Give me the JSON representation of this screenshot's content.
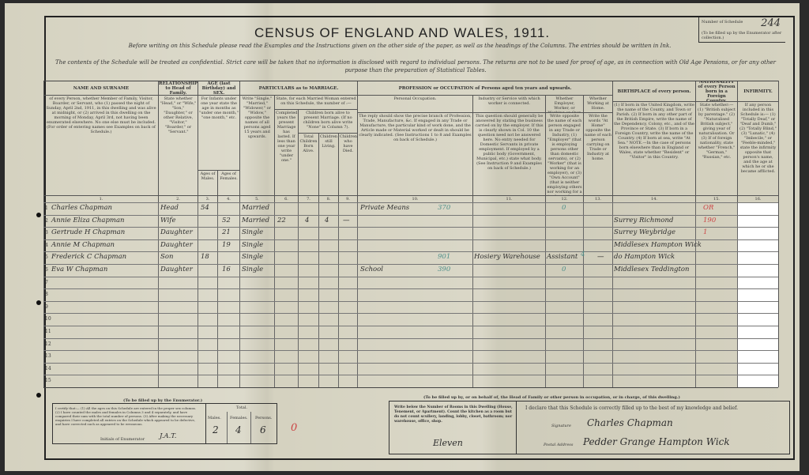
{
  "header": {
    "title": "CENSUS OF ENGLAND AND WALES, 1911.",
    "instruction": "Before writing on this Schedule please read the Examples and the Instructions given on the other side of the paper, as well as the headings of the Columns. The entries should be written in Ink.",
    "confidential": "The contents of the Schedule will be treated as confidential. Strict care will be taken that no information is disclosed with regard to individual persons. The returns are not to be used for proof of age, as in connection with Old Age Pensions, or for any other purpose than the preparation of Statistical Tables.",
    "schedule_label": "Number of Schedule",
    "schedule_note": "(To be filled up by the Enumerator after collection.)",
    "schedule_number": "244"
  },
  "columns": {
    "name": {
      "title": "NAME AND SURNAME",
      "desc": "of every Person, whether Member of Family, Visitor, Boarder, or Servant, who (1) passed the night of Sunday, April 2nd, 1911, in this dwelling and was alive at midnight, or (2) arrived in this dwelling on the morning of Monday, April 3rd, not having been enumerated elsewhere. No one else must be included. (For order of entering names see Examples on back of Schedule.)",
      "num": "1."
    },
    "relationship": {
      "title": "RELATIONSHIP to Head of Family.",
      "desc": "State whether \"Head,\" or \"Wife,\" \"Son,\" \"Daughter,\" or other Relative, \"Visitor,\" \"Boarder,\" or \"Servant.\"",
      "num": "2."
    },
    "age": {
      "title": "AGE (last Birthday) and SEX.",
      "desc": "For Infants under one year state the age in months as \"under one month,\" \"one month,\" etc.",
      "males": "Ages of Males.",
      "females": "Ages of Females.",
      "num_m": "3.",
      "num_f": "4."
    },
    "marriage": {
      "title": "PARTICULARS as to MARRIAGE.",
      "status": "Write \"Single,\" \"Married,\" \"Widower,\" or \"Widow,\" opposite the names of all persons aged 15 years and upwards.",
      "married_woman": "State, for each Married Woman entered on this Schedule, the number of :—",
      "years": "Completed years the present Marriage has lasted. If less than one year write \"under one.\"",
      "children": "Children born alive to present Marriage. (If no children born alive write \"None\" in Column 7).",
      "total": "Total Children Born Alive.",
      "living": "Children still Living.",
      "died": "Children who have Died.",
      "nums": [
        "5.",
        "6.",
        "7.",
        "8.",
        "9."
      ]
    },
    "occupation": {
      "title": "PROFESSION or OCCUPATION of Persons aged ten years and upwards.",
      "personal": "Personal Occupation.",
      "personal_desc": "The reply should show the precise branch of Profession, Trade, Manufacture, &c. If engaged in any Trade or Manufacture, the particular kind of work done, and the Article made or Material worked or dealt in should be clearly indicated. (See Instructions 1 to 8 and Examples on back of Schedule.)",
      "industry": "Industry or Service with which worker is connected.",
      "industry_desc": "This question should generally be answered by stating the business carried on by the employer. If this is clearly shown in Col. 10 the question need not be answered here. No entry needed for Domestic Servants in private employment. If employed by a public body (Government, Municipal, etc.) state what body. (See Instruction 9 and Examples on back of Schedule.)",
      "employer": "Whether Employer, Worker, or Working on Own Account.",
      "employer_desc": "Write opposite the name of each person engaged in any Trade or Industry, (1) \"Employer\" (that is employing persons other than domestic servants), or (2) \"Worker\" (that is working for an employer), or (3) \"Own Account\" (that is neither employing others nor working for a trade employer).",
      "home": "Whether Working at Home.",
      "home_desc": "Write the words \"At Home\" opposite the name of each person carrying on Trade or Industry at home.",
      "nums": [
        "10.",
        "11.",
        "12.",
        "13."
      ]
    },
    "birthplace": {
      "title": "BIRTHPLACE of every person.",
      "desc": "(1) If born in the United Kingdom, write the name of the County, and Town or Parish. (2) If born in any other part of the British Empire, write the name of the Dependency, Colony, etc., and of the Province or State. (3) If born in a Foreign Country, write the name of the Country. (4) If born at sea, write \"At Sea.\" NOTE.—In the case of persons born elsewhere than in England or Wales, state whether \"Resident\" or \"Visitor\" in this Country.",
      "num": "14."
    },
    "nationality": {
      "title": "NATIONALITY of every Person born in a Foreign Country.",
      "desc": "State whether:— (1) \"British subject by parentage.\" (2) \"Naturalised British subject,\" giving year of naturalisation. Or (3) If of foreign nationality, state whether \"French,\" \"German,\" \"Russian,\" etc.",
      "num": "15."
    },
    "infirmity": {
      "title": "INFIRMITY.",
      "desc": "If any person included in this Schedule is:— (1) \"Totally Deaf,\" or \"Deaf and Dumb,\" (2) \"Totally Blind,\" (3) \"Lunatic,\" (4) \"Imbecile,\" or \"Feeble-minded,\" state the infirmity opposite that person's name, and the age at which he or she became afflicted.",
      "num": "16."
    }
  },
  "rows": [
    {
      "n": "1",
      "name": "Charles Chapman",
      "rel": "Head",
      "male": "54",
      "female": "",
      "status": "Married",
      "years": "",
      "total": "",
      "living": "",
      "died": "",
      "occupation": "Private Means",
      "occ_code": "370",
      "industry": "",
      "employer": "",
      "emp_code": "0",
      "home": "",
      "birthplace": "",
      "nationality": "OR",
      "infirmity": ""
    },
    {
      "n": "2",
      "name": "Annie Eliza Chapman",
      "rel": "Wife",
      "male": "",
      "female": "52",
      "status": "Married",
      "years": "22",
      "total": "4",
      "living": "4",
      "died": "—",
      "occupation": "",
      "occ_code": "",
      "industry": "",
      "employer": "",
      "emp_code": "",
      "home": "",
      "birthplace": "Surrey Richmond",
      "nationality": "190",
      "infirmity": ""
    },
    {
      "n": "3",
      "name": "Gertrude H Chapman",
      "rel": "Daughter",
      "male": "",
      "female": "21",
      "status": "Single",
      "years": "",
      "total": "",
      "living": "",
      "died": "",
      "occupation": "",
      "occ_code": "",
      "industry": "",
      "employer": "",
      "emp_code": "",
      "home": "",
      "birthplace": "Surrey Weybridge",
      "nationality": "1",
      "infirmity": ""
    },
    {
      "n": "4",
      "name": "Annie M Chapman",
      "rel": "Daughter",
      "male": "",
      "female": "19",
      "status": "Single",
      "years": "",
      "total": "",
      "living": "",
      "died": "",
      "occupation": "",
      "occ_code": "",
      "industry": "",
      "employer": "",
      "emp_code": "",
      "home": "",
      "birthplace": "Middlesex Hampton Wick",
      "nationality": "",
      "infirmity": ""
    },
    {
      "n": "5",
      "name": "Frederick C Chapman",
      "rel": "Son",
      "male": "18",
      "female": "",
      "status": "Single",
      "years": "",
      "total": "",
      "living": "",
      "died": "",
      "occupation": "",
      "occ_code": "901",
      "industry": "Hosiery Warehouse",
      "employer": "Assistant",
      "emp_code": "4",
      "home": "—",
      "birthplace": "do Hampton Wick",
      "nationality": "",
      "infirmity": ""
    },
    {
      "n": "6",
      "name": "Eva W Chapman",
      "rel": "Daughter",
      "male": "",
      "female": "16",
      "status": "Single",
      "years": "",
      "total": "",
      "living": "",
      "died": "",
      "occupation": "School",
      "occ_code": "390",
      "industry": "",
      "employer": "",
      "emp_code": "0",
      "home": "",
      "birthplace": "Middlesex Teddington",
      "nationality": "",
      "infirmity": ""
    }
  ],
  "row_numbers": [
    "1",
    "2",
    "3",
    "4",
    "5",
    "6",
    "7",
    "8",
    "9",
    "10",
    "11",
    "12",
    "13",
    "14",
    "15"
  ],
  "enumerator": {
    "heading": "(To be filled up by the Enumerator.)",
    "certify": "I certify that:— (1) All the ages on this Schedule are entered in the proper sex columns. (2) I have counted the males and females in Columns 3 and 4 separately, and have compared their sum with the total number of persons. (3) After making the necessary enquiries I have completed all entries on the Schedule which appeared to be defective, and have corrected such as appeared to be erroneous.",
    "initials_label": "Initials of Enumerator",
    "initials": "J.A.T.",
    "total_label": "Total.",
    "males_label": "Males.",
    "females_label": "Females.",
    "persons_label": "Persons.",
    "males": "2",
    "females": "4",
    "persons": "6",
    "mark": "0"
  },
  "household": {
    "heading": "(To be filled up by, or on behalf of, the Head of Family or other person in occupation, or in charge, of this dwelling.)",
    "rooms_text": "Write below the Number of Rooms in this Dwelling (House, Tenement, or Apartment). Count the kitchen as a room but do not count scullery, landing, lobby, closet, bathroom; nor warehouse, office, shop.",
    "rooms": "Eleven",
    "declaration": "I declare that this Schedule is correctly filled up to the best of my knowledge and belief.",
    "signature_label": "Signature",
    "signature": "Charles Chapman",
    "address_label": "Postal Address",
    "address": "Pedder Grange Hampton Wick"
  }
}
